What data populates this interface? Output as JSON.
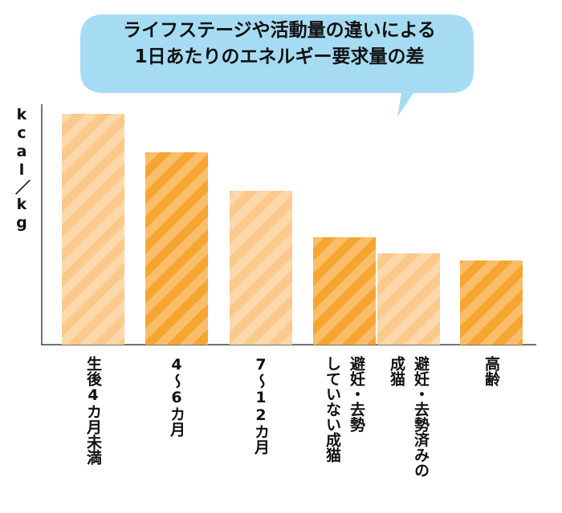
{
  "chart_data": {
    "type": "bar",
    "title": "ライフステージや活動量の違いによる\n1日あたりのエネルギー要求量の差",
    "y_label": "kcal／kg",
    "categories": [
      "生後4カ月未満",
      "4〜6カ月",
      "7〜12カ月",
      "避妊・去勢\nしていない成猫",
      "避妊・去勢済みの\n成猫",
      "高齢"
    ],
    "values": [
      288,
      240,
      192,
      134,
      114,
      105
    ],
    "colors": [
      "#fbc98b",
      "#f6a531",
      "#fbc98b",
      "#f6a531",
      "#fbc98b",
      "#f6a531"
    ],
    "ylim": [
      0,
      300
    ]
  }
}
